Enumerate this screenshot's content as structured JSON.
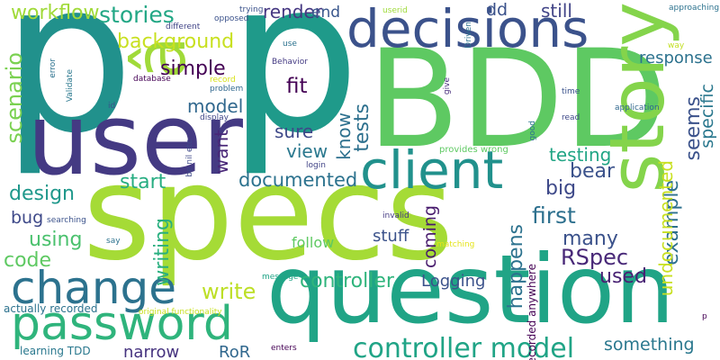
{
  "word_cloud": {
    "background": "#ffffff",
    "words": [
      {
        "id": "p1",
        "text": "p",
        "color": "#21918c"
      },
      {
        "id": "p2",
        "text": "p",
        "color": "#1f9a8a"
      },
      {
        "id": "bdd",
        "text": "BDD",
        "color": "#5ec962"
      },
      {
        "id": "specs",
        "text": "specs",
        "color": "#a5db36"
      },
      {
        "id": "question",
        "text": "question",
        "color": "#20a486"
      },
      {
        "id": "user",
        "text": "user",
        "color": "#443a83"
      },
      {
        "id": "a_accent",
        "text": "â",
        "color": "#a0da39"
      },
      {
        "id": "decisions",
        "text": "decisions",
        "color": "#3b528b"
      },
      {
        "id": "story",
        "text": "story",
        "color": "#84d44b"
      },
      {
        "id": "client",
        "text": "client",
        "color": "#21918c"
      },
      {
        "id": "password",
        "text": "password",
        "color": "#2fb47c"
      },
      {
        "id": "change",
        "text": "change",
        "color": "#2c728e"
      },
      {
        "id": "controller_model",
        "text": "controller model",
        "color": "#20a486"
      },
      {
        "id": "stories",
        "text": "stories",
        "color": "#22a785"
      },
      {
        "id": "workflow",
        "text": "workflow",
        "color": "#a0da39"
      },
      {
        "id": "background",
        "text": "background",
        "color": "#c8e020"
      },
      {
        "id": "simple",
        "text": "simple",
        "color": "#440154"
      },
      {
        "id": "scenario",
        "text": "scenario",
        "color": "#7ad151"
      },
      {
        "id": "design",
        "text": "design",
        "color": "#1f988b"
      },
      {
        "id": "using",
        "text": "using",
        "color": "#4ac16d"
      },
      {
        "id": "bug",
        "text": "bug",
        "color": "#3e4989"
      },
      {
        "id": "code",
        "text": "code",
        "color": "#5ec962"
      },
      {
        "id": "start",
        "text": "start",
        "color": "#26ad81"
      },
      {
        "id": "documented",
        "text": "documented",
        "color": "#2c728e"
      },
      {
        "id": "want",
        "text": "want",
        "color": "#482677"
      },
      {
        "id": "model",
        "text": "model",
        "color": "#31688e"
      },
      {
        "id": "render",
        "text": "render",
        "color": "#453781"
      },
      {
        "id": "end",
        "text": "end",
        "color": "#39568c"
      },
      {
        "id": "fit",
        "text": "fit",
        "color": "#440154"
      },
      {
        "id": "sure",
        "text": "sure",
        "color": "#3e4989"
      },
      {
        "id": "view",
        "text": "view",
        "color": "#2a788e"
      },
      {
        "id": "know",
        "text": "know",
        "color": "#2d708e"
      },
      {
        "id": "tests",
        "text": "tests",
        "color": "#2d708e"
      },
      {
        "id": "writing",
        "text": "writing",
        "color": "#29af7f"
      },
      {
        "id": "write",
        "text": "write",
        "color": "#bddf26"
      },
      {
        "id": "controller",
        "text": "controller",
        "color": "#2fb47c"
      },
      {
        "id": "follow",
        "text": "follow",
        "color": "#5ec962"
      },
      {
        "id": "stuff",
        "text": "stuff",
        "color": "#3b528b"
      },
      {
        "id": "coming",
        "text": "coming",
        "color": "#481b6d"
      },
      {
        "id": "happens",
        "text": "happens",
        "color": "#2c728e"
      },
      {
        "id": "first",
        "text": "first",
        "color": "#2d708e"
      },
      {
        "id": "many",
        "text": "many",
        "color": "#3b528b"
      },
      {
        "id": "rspec",
        "text": "RSpec",
        "color": "#482878"
      },
      {
        "id": "big",
        "text": "big",
        "color": "#3e4989"
      },
      {
        "id": "bear",
        "text": "bear",
        "color": "#3b528b"
      },
      {
        "id": "testing",
        "text": "testing",
        "color": "#21a585"
      },
      {
        "id": "example",
        "text": "example",
        "color": "#2d708e"
      },
      {
        "id": "undocumented",
        "text": "undocumented",
        "color": "#c8e020"
      },
      {
        "id": "seems",
        "text": "seems",
        "color": "#3b528b"
      },
      {
        "id": "specific",
        "text": "specific",
        "color": "#2a788e"
      },
      {
        "id": "response",
        "text": "response",
        "color": "#2c728e"
      },
      {
        "id": "dd",
        "text": "dd",
        "color": "#3b528b"
      },
      {
        "id": "still",
        "text": "still",
        "color": "#414487"
      },
      {
        "id": "logging",
        "text": "Logging",
        "color": "#3b528b"
      },
      {
        "id": "used",
        "text": "used",
        "color": "#482173"
      },
      {
        "id": "something",
        "text": "something",
        "color": "#2a788e"
      },
      {
        "id": "narrow",
        "text": "narrow",
        "color": "#46337f"
      },
      {
        "id": "ror",
        "text": "RoR",
        "color": "#31688e"
      },
      {
        "id": "learning_tdd",
        "text": "learning TDD",
        "color": "#2a788e"
      },
      {
        "id": "actually_recorded",
        "text": "actually recorded",
        "color": "#2c728e"
      },
      {
        "id": "original_functionality",
        "text": "original functionality",
        "color": "#c8e020"
      },
      {
        "id": "recorded_anywhere",
        "text": "recorded anywhere",
        "color": "#440154"
      },
      {
        "id": "provides_wrong",
        "text": "provides wrong",
        "color": "#5ec962"
      },
      {
        "id": "invalid",
        "text": "invalid",
        "color": "#443a83"
      },
      {
        "id": "searching",
        "text": "searching",
        "color": "#3b528b"
      },
      {
        "id": "say",
        "text": "say",
        "color": "#2c728e"
      },
      {
        "id": "message",
        "text": "message",
        "color": "#20a486"
      },
      {
        "id": "enters",
        "text": "enters",
        "color": "#440154"
      },
      {
        "id": "matching",
        "text": "matching",
        "color": "#e5e419"
      },
      {
        "id": "login",
        "text": "login",
        "color": "#414487"
      },
      {
        "id": "be_nil_etc",
        "text": "be nil etc",
        "color": "#3e4989"
      },
      {
        "id": "display",
        "text": "display",
        "color": "#404688"
      },
      {
        "id": "problem",
        "text": "problem",
        "color": "#31688e"
      },
      {
        "id": "record",
        "text": "record",
        "color": "#d8e219"
      },
      {
        "id": "database",
        "text": "database",
        "color": "#440154"
      },
      {
        "id": "behavior",
        "text": "Behavior",
        "color": "#443a83"
      },
      {
        "id": "use",
        "text": "use",
        "color": "#2c728e"
      },
      {
        "id": "different",
        "text": "different",
        "color": "#414487"
      },
      {
        "id": "opposed",
        "text": "opposed",
        "color": "#3b528b"
      },
      {
        "id": "trying",
        "text": "trying",
        "color": "#3b528b"
      },
      {
        "id": "userid",
        "text": "userid",
        "color": "#9fda3a"
      },
      {
        "id": "driven",
        "text": "Driven",
        "color": "#2c728e"
      },
      {
        "id": "give",
        "text": "give",
        "color": "#472d7b"
      },
      {
        "id": "good",
        "text": "good",
        "color": "#2c728e"
      },
      {
        "id": "time",
        "text": "time",
        "color": "#3b528b"
      },
      {
        "id": "read",
        "text": "read",
        "color": "#3e4989"
      },
      {
        "id": "application",
        "text": "application",
        "color": "#31688e"
      },
      {
        "id": "approaching",
        "text": "approaching",
        "color": "#2c728e"
      },
      {
        "id": "way",
        "text": "way",
        "color": "#c2df23"
      },
      {
        "id": "error",
        "text": "error",
        "color": "#2c728e"
      },
      {
        "id": "validate",
        "text": "Validate",
        "color": "#2a788e"
      },
      {
        "id": "id",
        "text": "id",
        "color": "#3b528b"
      },
      {
        "id": "p_small",
        "text": "p",
        "color": "#440154"
      }
    ]
  }
}
